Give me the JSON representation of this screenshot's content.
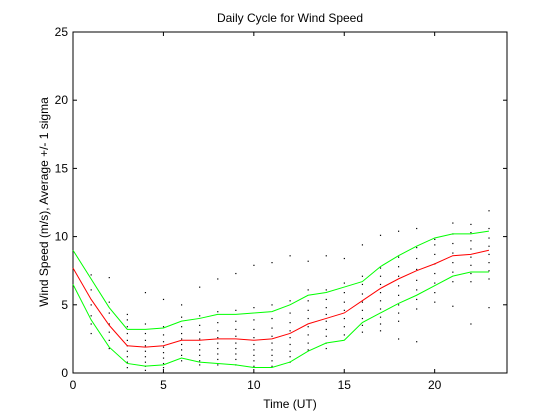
{
  "chart_data": {
    "type": "line",
    "title": "Daily Cycle for Wind Speed",
    "xlabel": "Time (UT)",
    "ylabel": "Wind Speed (m/s), Average +/- 1 sigma",
    "xlim": [
      0,
      24
    ],
    "ylim": [
      0,
      25
    ],
    "x_ticks": [
      0,
      5,
      10,
      15,
      20
    ],
    "y_ticks": [
      0,
      5,
      10,
      15,
      20,
      25
    ],
    "grid": false,
    "colors": {
      "mean": "#ff0000",
      "sigma": "#00ff00",
      "observations": "#000000"
    },
    "series": [
      {
        "role": "mean",
        "x": [
          0,
          1,
          2,
          3,
          4,
          5,
          6,
          7,
          8,
          9,
          10,
          11,
          12,
          13,
          14,
          15,
          16,
          17,
          18,
          19,
          20,
          21,
          22,
          23
        ],
        "y": [
          7.7,
          5.4,
          3.5,
          2.0,
          1.9,
          2.0,
          2.4,
          2.4,
          2.5,
          2.5,
          2.4,
          2.5,
          2.9,
          3.6,
          4.0,
          4.4,
          5.3,
          6.2,
          6.9,
          7.5,
          8.0,
          8.6,
          8.7,
          9.0
        ]
      },
      {
        "role": "upper-sigma",
        "x": [
          0,
          1,
          2,
          3,
          4,
          5,
          6,
          7,
          8,
          9,
          10,
          11,
          12,
          13,
          14,
          15,
          16,
          17,
          18,
          19,
          20,
          21,
          22,
          23
        ],
        "y": [
          9.0,
          6.9,
          4.8,
          3.2,
          3.2,
          3.3,
          3.8,
          4.0,
          4.3,
          4.3,
          4.4,
          4.5,
          5.0,
          5.7,
          5.9,
          6.3,
          6.7,
          7.8,
          8.6,
          9.3,
          9.9,
          10.2,
          10.2,
          10.4
        ]
      },
      {
        "role": "lower-sigma",
        "x": [
          0,
          1,
          2,
          3,
          4,
          5,
          6,
          7,
          8,
          9,
          10,
          11,
          12,
          13,
          14,
          15,
          16,
          17,
          18,
          19,
          20,
          21,
          22,
          23
        ],
        "y": [
          6.5,
          3.9,
          1.9,
          0.7,
          0.5,
          0.6,
          1.1,
          0.8,
          0.7,
          0.6,
          0.4,
          0.4,
          0.8,
          1.6,
          2.2,
          2.4,
          3.7,
          4.4,
          5.1,
          5.7,
          6.4,
          7.1,
          7.4,
          7.4
        ]
      }
    ],
    "observations": [
      [
        1,
        7.2
      ],
      [
        1,
        6.1
      ],
      [
        1,
        5.0
      ],
      [
        1,
        4.2
      ],
      [
        1,
        3.6
      ],
      [
        1,
        2.9
      ],
      [
        2,
        7.0
      ],
      [
        2,
        5.2
      ],
      [
        2,
        4.4
      ],
      [
        2,
        3.6
      ],
      [
        2,
        3.0
      ],
      [
        2,
        2.4
      ],
      [
        2,
        1.8
      ],
      [
        3,
        4.3
      ],
      [
        3,
        3.9
      ],
      [
        3,
        3.4
      ],
      [
        3,
        2.9
      ],
      [
        3,
        2.4
      ],
      [
        3,
        2.0
      ],
      [
        3,
        1.6
      ],
      [
        3,
        1.2
      ],
      [
        3,
        0.8
      ],
      [
        3,
        0.4
      ],
      [
        4,
        5.9
      ],
      [
        4,
        3.6
      ],
      [
        4,
        2.9
      ],
      [
        4,
        2.4
      ],
      [
        4,
        2.0
      ],
      [
        4,
        1.6
      ],
      [
        4,
        1.2
      ],
      [
        4,
        0.8
      ],
      [
        4,
        0.5
      ],
      [
        4,
        0.2
      ],
      [
        5,
        5.4
      ],
      [
        5,
        3.4
      ],
      [
        5,
        2.8
      ],
      [
        5,
        2.3
      ],
      [
        5,
        1.9
      ],
      [
        5,
        1.5
      ],
      [
        5,
        1.1
      ],
      [
        5,
        0.7
      ],
      [
        5,
        0.4
      ],
      [
        6,
        5.0
      ],
      [
        6,
        4.1
      ],
      [
        6,
        3.4
      ],
      [
        6,
        2.9
      ],
      [
        6,
        2.5
      ],
      [
        6,
        2.1
      ],
      [
        6,
        1.7
      ],
      [
        6,
        1.3
      ],
      [
        6,
        0.9
      ],
      [
        7,
        6.3
      ],
      [
        7,
        4.2
      ],
      [
        7,
        3.5
      ],
      [
        7,
        3.0
      ],
      [
        7,
        2.5
      ],
      [
        7,
        2.1
      ],
      [
        7,
        1.7
      ],
      [
        7,
        1.3
      ],
      [
        7,
        0.9
      ],
      [
        7,
        0.6
      ],
      [
        8,
        6.9
      ],
      [
        8,
        4.5
      ],
      [
        8,
        3.7
      ],
      [
        8,
        3.1
      ],
      [
        8,
        2.6
      ],
      [
        8,
        2.2
      ],
      [
        8,
        1.8
      ],
      [
        8,
        1.4
      ],
      [
        8,
        1.0
      ],
      [
        8,
        0.6
      ],
      [
        9,
        7.3
      ],
      [
        9,
        4.6
      ],
      [
        9,
        3.8
      ],
      [
        9,
        3.2
      ],
      [
        9,
        2.7
      ],
      [
        9,
        2.2
      ],
      [
        9,
        1.8
      ],
      [
        9,
        1.4
      ],
      [
        9,
        1.0
      ],
      [
        9,
        0.6
      ],
      [
        10,
        7.9
      ],
      [
        10,
        4.8
      ],
      [
        10,
        3.9
      ],
      [
        10,
        3.2
      ],
      [
        10,
        2.6
      ],
      [
        10,
        2.1
      ],
      [
        10,
        1.7
      ],
      [
        10,
        1.3
      ],
      [
        10,
        0.9
      ],
      [
        10,
        0.5
      ],
      [
        11,
        8.1
      ],
      [
        11,
        5.0
      ],
      [
        11,
        4.0
      ],
      [
        11,
        3.3
      ],
      [
        11,
        2.7
      ],
      [
        11,
        2.2
      ],
      [
        11,
        1.7
      ],
      [
        11,
        1.3
      ],
      [
        11,
        0.9
      ],
      [
        11,
        0.5
      ],
      [
        12,
        8.6
      ],
      [
        12,
        5.3
      ],
      [
        12,
        4.4
      ],
      [
        12,
        3.7
      ],
      [
        12,
        3.1
      ],
      [
        12,
        2.6
      ],
      [
        12,
        2.1
      ],
      [
        12,
        1.6
      ],
      [
        12,
        1.2
      ],
      [
        12,
        0.8
      ],
      [
        13,
        8.2
      ],
      [
        13,
        6.1
      ],
      [
        13,
        5.3
      ],
      [
        13,
        4.6
      ],
      [
        13,
        4.0
      ],
      [
        13,
        3.4
      ],
      [
        13,
        2.8
      ],
      [
        13,
        2.2
      ],
      [
        13,
        1.7
      ],
      [
        14,
        8.6
      ],
      [
        14,
        6.1
      ],
      [
        14,
        5.4
      ],
      [
        14,
        4.8
      ],
      [
        14,
        4.3
      ],
      [
        14,
        3.8
      ],
      [
        14,
        3.2
      ],
      [
        14,
        2.7
      ],
      [
        14,
        2.2
      ],
      [
        14,
        1.8
      ],
      [
        15,
        8.4
      ],
      [
        15,
        6.6
      ],
      [
        15,
        5.9
      ],
      [
        15,
        5.2
      ],
      [
        15,
        4.6
      ],
      [
        15,
        4.0
      ],
      [
        15,
        3.4
      ],
      [
        15,
        2.8
      ],
      [
        16,
        9.4
      ],
      [
        16,
        7.1
      ],
      [
        16,
        6.5
      ],
      [
        16,
        5.8
      ],
      [
        16,
        5.2
      ],
      [
        16,
        4.6
      ],
      [
        16,
        4.0
      ],
      [
        16,
        3.5
      ],
      [
        16,
        3.0
      ],
      [
        17,
        10.1
      ],
      [
        17,
        7.7
      ],
      [
        17,
        7.1
      ],
      [
        17,
        6.5
      ],
      [
        17,
        5.9
      ],
      [
        17,
        5.3
      ],
      [
        17,
        4.7
      ],
      [
        17,
        4.1
      ],
      [
        17,
        3.6
      ],
      [
        17,
        3.1
      ],
      [
        18,
        10.4
      ],
      [
        18,
        8.5
      ],
      [
        18,
        7.8
      ],
      [
        18,
        7.1
      ],
      [
        18,
        6.4
      ],
      [
        18,
        5.7
      ],
      [
        18,
        5.0
      ],
      [
        18,
        4.4
      ],
      [
        18,
        3.8
      ],
      [
        18,
        2.5
      ],
      [
        19,
        10.6
      ],
      [
        19,
        9.2
      ],
      [
        19,
        8.4
      ],
      [
        19,
        7.6
      ],
      [
        19,
        6.8
      ],
      [
        19,
        6.1
      ],
      [
        19,
        5.4
      ],
      [
        19,
        4.7
      ],
      [
        19,
        2.3
      ],
      [
        20,
        9.8
      ],
      [
        20,
        9.4
      ],
      [
        20,
        8.7
      ],
      [
        20,
        8.0
      ],
      [
        20,
        7.3
      ],
      [
        20,
        6.6
      ],
      [
        20,
        5.9
      ],
      [
        20,
        5.2
      ],
      [
        21,
        11.0
      ],
      [
        21,
        10.2
      ],
      [
        21,
        9.5
      ],
      [
        21,
        8.8
      ],
      [
        21,
        8.1
      ],
      [
        21,
        7.4
      ],
      [
        21,
        6.7
      ],
      [
        21,
        4.9
      ],
      [
        22,
        10.9
      ],
      [
        22,
        10.3
      ],
      [
        22,
        9.7
      ],
      [
        22,
        9.1
      ],
      [
        22,
        8.5
      ],
      [
        22,
        7.9
      ],
      [
        22,
        7.3
      ],
      [
        22,
        6.7
      ],
      [
        22,
        3.6
      ],
      [
        23,
        11.9
      ],
      [
        23,
        10.6
      ],
      [
        23,
        9.9
      ],
      [
        23,
        9.3
      ],
      [
        23,
        8.7
      ],
      [
        23,
        8.1
      ],
      [
        23,
        7.5
      ],
      [
        23,
        6.9
      ],
      [
        23,
        4.8
      ]
    ]
  }
}
